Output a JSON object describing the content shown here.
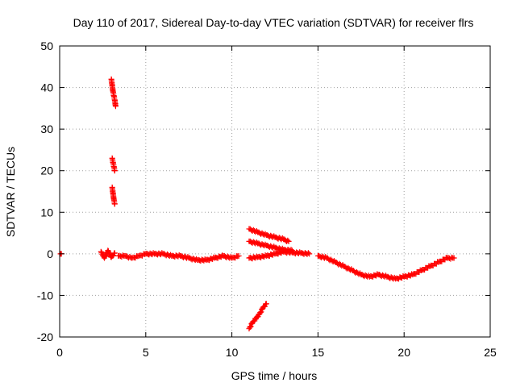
{
  "chart_data": {
    "type": "scatter",
    "title": "Day 110 of 2017, Sidereal Day-to-day VTEC variation (SDTVAR) for receiver flrs",
    "xlabel": "GPS time / hours",
    "ylabel": "SDTVAR / TECUs",
    "xlim": [
      0,
      25
    ],
    "ylim": [
      -20,
      50
    ],
    "xticks": [
      0,
      5,
      10,
      15,
      20,
      25
    ],
    "yticks": [
      -20,
      -10,
      0,
      10,
      20,
      30,
      40,
      50
    ],
    "grid": true,
    "legend": "none",
    "marker": "+",
    "series_color": "#ff0000",
    "grid_color": "#a0a0a0",
    "series": [
      {
        "name": "SDTVAR",
        "segments": [
          {
            "x": [
              0.05,
              0.1
            ],
            "y": [
              0.0,
              0.0
            ]
          },
          {
            "x": [
              2.4,
              2.6,
              2.8,
              3.0,
              3.2
            ],
            "y": [
              0.5,
              -1.0,
              0.8,
              -0.8,
              0.2
            ]
          },
          {
            "x": [
              3.0,
              3.05,
              3.1,
              3.15,
              3.2,
              3.25
            ],
            "y": [
              42,
              40.5,
              39,
              38,
              37,
              35.5
            ]
          },
          {
            "x": [
              3.05,
              3.1,
              3.15,
              3.2
            ],
            "y": [
              23,
              22,
              21,
              20
            ]
          },
          {
            "x": [
              3.05,
              3.1,
              3.15,
              3.2
            ],
            "y": [
              16,
              14.5,
              13,
              12
            ]
          },
          {
            "x": [
              3.4,
              3.8,
              4.2,
              4.6,
              5.0,
              5.5,
              6.0,
              6.5,
              7.0,
              7.5,
              8.0,
              8.5,
              9.0,
              9.5,
              10.0,
              10.4
            ],
            "y": [
              -0.5,
              -0.5,
              -1.0,
              -0.5,
              0.0,
              0.0,
              0.0,
              -0.5,
              -0.5,
              -1.0,
              -1.5,
              -1.5,
              -1.0,
              -0.5,
              -1.0,
              -0.5
            ]
          },
          {
            "x": [
              11.0,
              11.2,
              11.4,
              11.6,
              11.8,
              12.0
            ],
            "y": [
              -18,
              -16.5,
              -15.5,
              -14.5,
              -13,
              -12
            ]
          },
          {
            "x": [
              11.0,
              11.5,
              12.0,
              12.5,
              13.0,
              13.3
            ],
            "y": [
              6,
              5.2,
              4.5,
              4.0,
              3.5,
              3.0
            ]
          },
          {
            "x": [
              11.0,
              11.5,
              12.0,
              12.5,
              13.0,
              13.5
            ],
            "y": [
              3,
              2.5,
              2.0,
              1.5,
              1.0,
              0.8
            ]
          },
          {
            "x": [
              11.0,
              11.5,
              12.0,
              12.5,
              13.0,
              13.5,
              14.0,
              14.5
            ],
            "y": [
              -1,
              -0.8,
              -0.5,
              0.0,
              0.5,
              0.3,
              0.2,
              0.0
            ]
          },
          {
            "x": [
              15.0,
              15.5,
              16.0,
              16.5,
              17.0,
              17.5,
              18.0,
              18.5,
              19.0,
              19.5,
              20.0,
              20.5,
              21.0,
              21.5,
              22.0,
              22.5,
              22.9
            ],
            "y": [
              -0.5,
              -1.0,
              -2.0,
              -3.0,
              -4.0,
              -5.0,
              -5.5,
              -5.0,
              -5.5,
              -6.0,
              -5.5,
              -5.0,
              -4.0,
              -3.0,
              -2.0,
              -1.0,
              -1.0
            ]
          }
        ]
      }
    ]
  }
}
